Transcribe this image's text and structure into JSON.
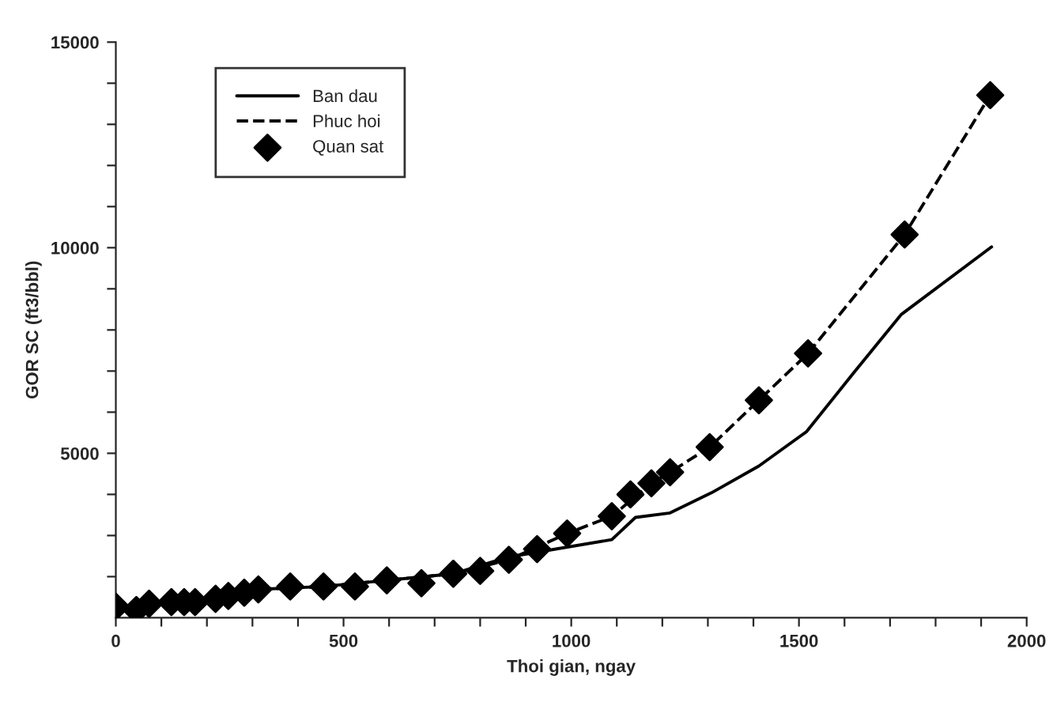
{
  "chart_data": {
    "type": "line",
    "xlabel": "Thoi gian, ngay",
    "ylabel": "GOR SC (ft3/bbl)",
    "xlim": [
      0,
      2000
    ],
    "ylim": [
      1000,
      15000
    ],
    "xticks": [
      0,
      {
        "value": 100,
        "label": null
      },
      {
        "value": 200,
        "label": null
      },
      {
        "value": 300,
        "label": null
      },
      {
        "value": 400,
        "label": null
      },
      500,
      {
        "value": 600,
        "label": null
      },
      {
        "value": 700,
        "label": null
      },
      {
        "value": 800,
        "label": null
      },
      {
        "value": 900,
        "label": null
      },
      1000,
      {
        "value": 1100,
        "label": null
      },
      {
        "value": 1200,
        "label": null
      },
      {
        "value": 1300,
        "label": null
      },
      {
        "value": 1400,
        "label": null
      },
      1500,
      {
        "value": 1600,
        "label": null
      },
      {
        "value": 1700,
        "label": null
      },
      {
        "value": 1800,
        "label": null
      },
      {
        "value": 1900,
        "label": null
      },
      2000
    ],
    "yticks": [
      {
        "value": 2000,
        "label": null
      },
      {
        "value": 3000,
        "label": null
      },
      {
        "value": 4000,
        "label": null
      },
      5000,
      {
        "value": 6000,
        "label": null
      },
      {
        "value": 7000,
        "label": null
      },
      {
        "value": 8000,
        "label": null
      },
      {
        "value": 9000,
        "label": null
      },
      10000,
      {
        "value": 11000,
        "label": null
      },
      {
        "value": 12000,
        "label": null
      },
      {
        "value": 13000,
        "label": null
      },
      {
        "value": 14000,
        "label": null
      },
      15000
    ],
    "grid": false,
    "legend": "top left",
    "series": [
      {
        "name": "Ban dau",
        "color": "#000000",
        "line_style": "solid",
        "marker": "none",
        "x": [
          0,
          45,
          122,
          219,
          313,
          456,
          595,
          741,
          863,
          1089,
          1141,
          1217,
          1308,
          1412,
          1517,
          1621,
          1725,
          1923
        ],
        "values": [
          1270,
          1190,
          1380,
          1460,
          1690,
          1760,
          1910,
          2070,
          2480,
          2900,
          3440,
          3550,
          4040,
          4690,
          5530,
          6970,
          8380,
          10020
        ]
      },
      {
        "name": "Phuc hoi",
        "color": "#000000",
        "line_style": "dashed",
        "marker": "none",
        "x": [
          0,
          45,
          122,
          219,
          313,
          456,
          595,
          741,
          863,
          991,
          1089,
          1176,
          1217,
          1304,
          1412,
          1520,
          1732,
          1920
        ],
        "values": [
          1270,
          1190,
          1380,
          1460,
          1690,
          1760,
          1910,
          2070,
          2410,
          3050,
          3470,
          4270,
          4540,
          5150,
          6290,
          7430,
          10320,
          13710
        ]
      },
      {
        "name": "Quan sat",
        "type": "scatter",
        "color": "#000000",
        "marker": "diamond",
        "x": [
          0,
          45,
          73,
          122,
          150,
          174,
          219,
          247,
          282,
          313,
          383,
          456,
          525,
          595,
          671,
          741,
          800,
          863,
          925,
          991,
          1089,
          1130,
          1176,
          1217,
          1304,
          1412,
          1520,
          1732,
          1920
        ],
        "values": [
          1270,
          1190,
          1340,
          1380,
          1380,
          1380,
          1460,
          1530,
          1610,
          1690,
          1760,
          1760,
          1760,
          1910,
          1840,
          2070,
          2140,
          2410,
          2670,
          3050,
          3470,
          4000,
          4270,
          4540,
          5150,
          6290,
          7430,
          10320,
          13710
        ]
      }
    ]
  }
}
